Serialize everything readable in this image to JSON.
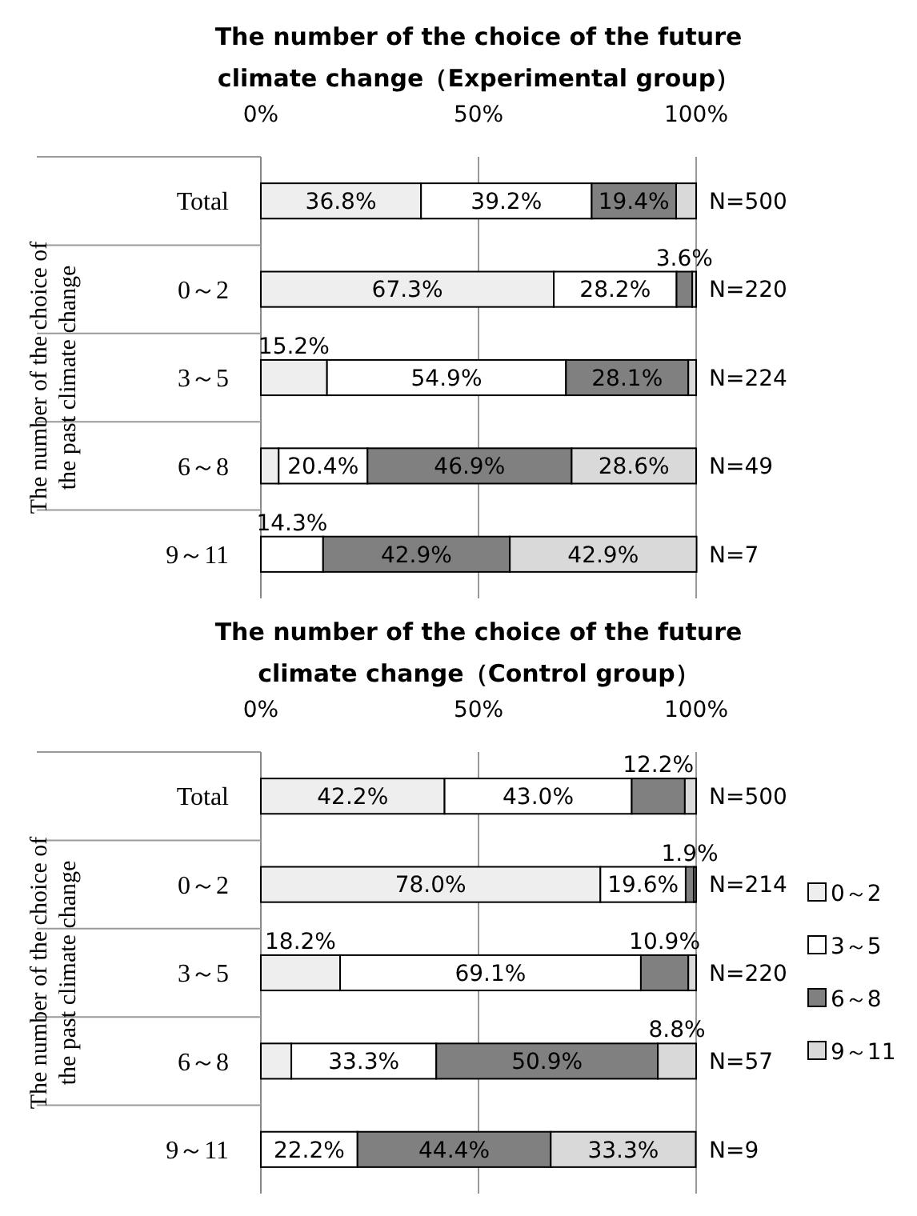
{
  "chart_data": [
    {
      "type": "bar",
      "orientation": "horizontal",
      "stacked": true,
      "title": "The number of the choice of the future climate change（Experimental group）",
      "ylabel": "The number of the choice of the past climate change",
      "categories": [
        "Total",
        "0～2",
        "3～5",
        "6～8",
        "9～11"
      ],
      "xlim": [
        0,
        100
      ],
      "xticks": [
        {
          "value": 0,
          "label": "0%"
        },
        {
          "value": 50,
          "label": "50%"
        },
        {
          "value": 100,
          "label": "100%"
        }
      ],
      "grid": "x",
      "legend": false,
      "series": [
        {
          "color": "#eeeeee",
          "values": [
            36.8,
            67.3,
            15.2,
            4.1,
            0
          ],
          "value_labels": [
            "36.8%",
            "67.3%",
            "15.2%",
            null,
            null
          ]
        },
        {
          "color": "#ffffff",
          "values": [
            39.2,
            28.2,
            54.9,
            20.4,
            14.3
          ],
          "value_labels": [
            "39.2%",
            "28.2%",
            "54.9%",
            "20.4%",
            "14.3%"
          ]
        },
        {
          "color": "#808080",
          "values": [
            19.4,
            3.6,
            28.1,
            46.9,
            42.9
          ],
          "value_labels": [
            "19.4%",
            "3.6%",
            "28.1%",
            "46.9%",
            "42.9%"
          ]
        },
        {
          "color": "#d9d9d9",
          "values": [
            4.6,
            0.9,
            1.8,
            28.6,
            42.9
          ],
          "value_labels": [
            null,
            null,
            null,
            "28.6%",
            "42.9%"
          ]
        }
      ],
      "annotations": [
        "N=500",
        "N=220",
        "N=224",
        "N=49",
        "N=7"
      ]
    },
    {
      "type": "bar",
      "orientation": "horizontal",
      "stacked": true,
      "title": "The number of the choice of the future climate change（Control group）",
      "ylabel": "The number of the choice of the past climate change",
      "categories": [
        "Total",
        "0～2",
        "3～5",
        "6～8",
        "9～11"
      ],
      "xlim": [
        0,
        100
      ],
      "xticks": [
        {
          "value": 0,
          "label": "0%"
        },
        {
          "value": 50,
          "label": "50%"
        },
        {
          "value": 100,
          "label": "100%"
        }
      ],
      "grid": "x",
      "legend": "right",
      "series": [
        {
          "name": "0～2",
          "color": "#eeeeee",
          "values": [
            42.2,
            78.0,
            18.2,
            7.0,
            0
          ],
          "value_labels": [
            "42.2%",
            "78.0%",
            "18.2%",
            null,
            null
          ]
        },
        {
          "name": "3～5",
          "color": "#ffffff",
          "values": [
            43.0,
            19.6,
            69.1,
            33.3,
            22.2
          ],
          "value_labels": [
            "43.0%",
            "19.6%",
            "69.1%",
            "33.3%",
            "22.2%"
          ]
        },
        {
          "name": "6～8",
          "color": "#808080",
          "values": [
            12.2,
            1.9,
            10.9,
            50.9,
            44.4
          ],
          "value_labels": [
            "12.2%",
            "1.9%",
            "10.9%",
            "50.9%",
            "44.4%"
          ]
        },
        {
          "name": "9～11",
          "color": "#d9d9d9",
          "values": [
            2.6,
            0.5,
            1.8,
            8.8,
            33.3
          ],
          "value_labels": [
            null,
            null,
            null,
            "8.8%",
            "33.3%"
          ]
        }
      ],
      "annotations": [
        "N=500",
        "N=214",
        "N=220",
        "N=57",
        "N=9"
      ]
    }
  ]
}
